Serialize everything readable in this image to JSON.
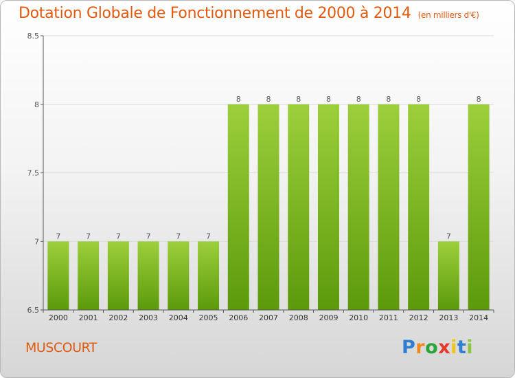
{
  "title": "Dotation Globale de Fonctionnement de 2000 à 2014",
  "subtitle": "(en milliers d'€)",
  "commune": "MUSCOURT",
  "logo": {
    "text": "Proxiti",
    "colors": [
      "#2f7fd0",
      "#f08a1c",
      "#2aa53a",
      "#e53a2c",
      "#f2c31a",
      "#2f7fd0",
      "#8ac53f"
    ]
  },
  "colors": {
    "bar_top": "#9ccf3b",
    "bar_bottom": "#5c9a0b",
    "title": "#e05a0f"
  },
  "chart_data": {
    "type": "bar",
    "title": "Dotation Globale de Fonctionnement de 2000 à 2014",
    "subtitle": "(en milliers d'€)",
    "categories": [
      "2000",
      "2001",
      "2002",
      "2003",
      "2004",
      "2005",
      "2006",
      "2007",
      "2008",
      "2009",
      "2010",
      "2011",
      "2012",
      "2013",
      "2014"
    ],
    "values": [
      7,
      7,
      7,
      7,
      7,
      7,
      8,
      8,
      8,
      8,
      8,
      8,
      8,
      7,
      8
    ],
    "ylim": [
      6.5,
      8.5
    ],
    "yticks": [
      6.5,
      7,
      7.5,
      8,
      8.5
    ],
    "ytick_labels": [
      "6.5",
      "7",
      "7.5",
      "8",
      "8.5"
    ],
    "grid": "horizontal",
    "xlabel": "",
    "ylabel": ""
  }
}
